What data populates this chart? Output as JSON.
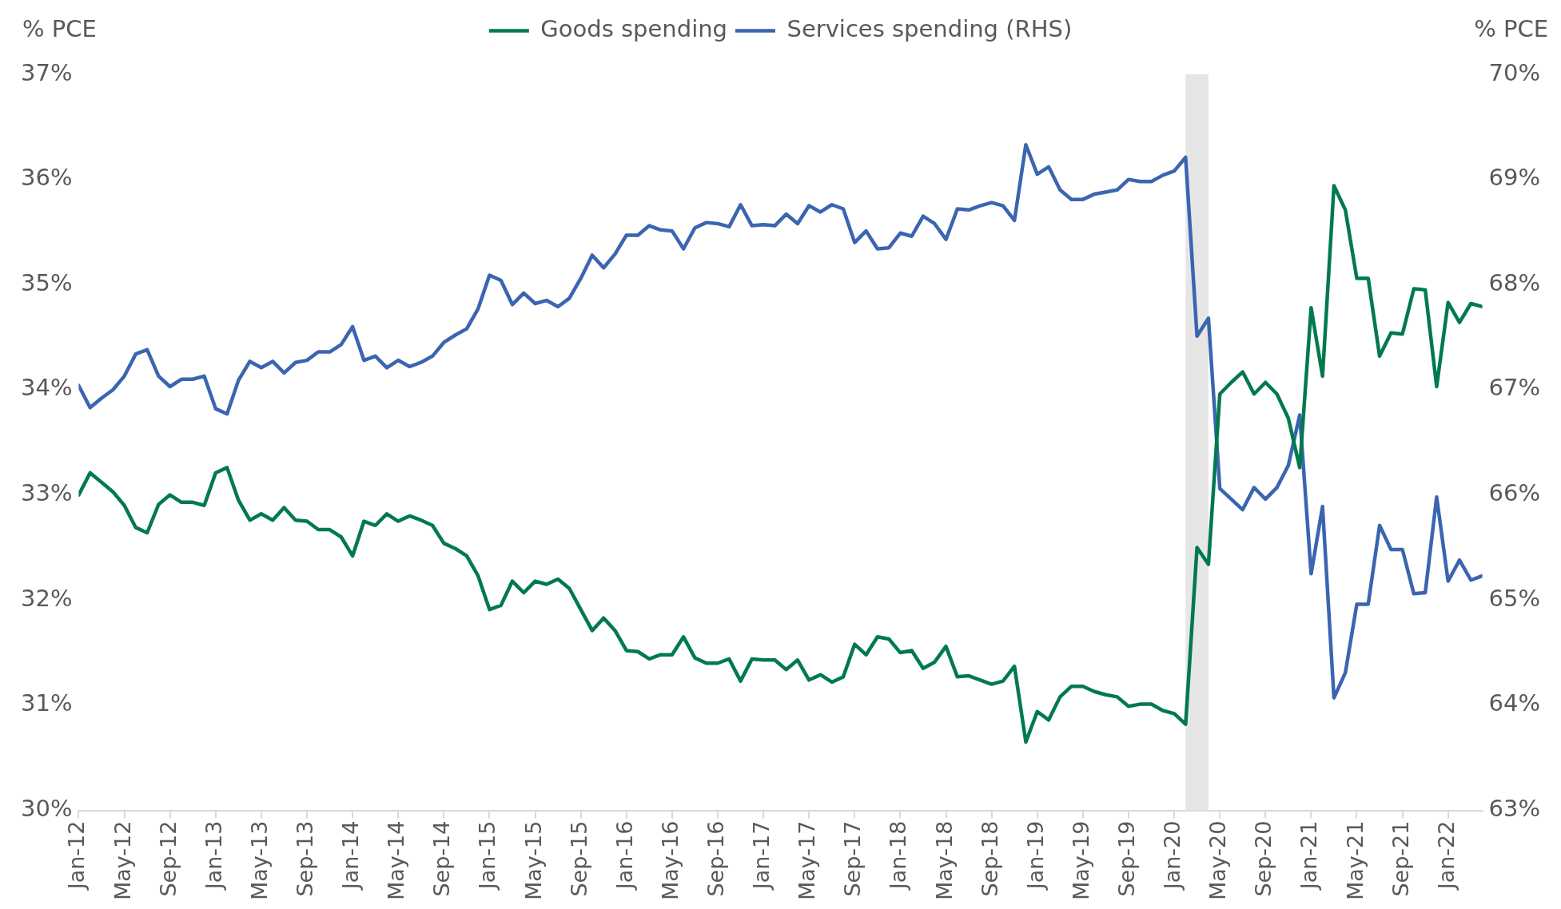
{
  "chart_data": {
    "type": "line",
    "ylabel": "% PCE",
    "y2label": "% PCE",
    "legend": "top",
    "grid": false,
    "marker": "none",
    "line_style": "solid",
    "x": [
      "2012-01",
      "2012-02",
      "2012-03",
      "2012-04",
      "2012-05",
      "2012-06",
      "2012-07",
      "2012-08",
      "2012-09",
      "2012-10",
      "2012-11",
      "2012-12",
      "2013-01",
      "2013-02",
      "2013-03",
      "2013-04",
      "2013-05",
      "2013-06",
      "2013-07",
      "2013-08",
      "2013-09",
      "2013-10",
      "2013-11",
      "2013-12",
      "2014-01",
      "2014-02",
      "2014-03",
      "2014-04",
      "2014-05",
      "2014-06",
      "2014-07",
      "2014-08",
      "2014-09",
      "2014-10",
      "2014-11",
      "2014-12",
      "2015-01",
      "2015-02",
      "2015-03",
      "2015-04",
      "2015-05",
      "2015-06",
      "2015-07",
      "2015-08",
      "2015-09",
      "2015-10",
      "2015-11",
      "2015-12",
      "2016-01",
      "2016-02",
      "2016-03",
      "2016-04",
      "2016-05",
      "2016-06",
      "2016-07",
      "2016-08",
      "2016-09",
      "2016-10",
      "2016-11",
      "2016-12",
      "2017-01",
      "2017-02",
      "2017-03",
      "2017-04",
      "2017-05",
      "2017-06",
      "2017-07",
      "2017-08",
      "2017-09",
      "2017-10",
      "2017-11",
      "2017-12",
      "2018-01",
      "2018-02",
      "2018-03",
      "2018-04",
      "2018-05",
      "2018-06",
      "2018-07",
      "2018-08",
      "2018-09",
      "2018-10",
      "2018-11",
      "2018-12",
      "2019-01",
      "2019-02",
      "2019-03",
      "2019-04",
      "2019-05",
      "2019-06",
      "2019-07",
      "2019-08",
      "2019-09",
      "2019-10",
      "2019-11",
      "2019-12",
      "2020-01",
      "2020-02",
      "2020-03",
      "2020-04",
      "2020-05",
      "2020-06",
      "2020-07",
      "2020-08",
      "2020-09",
      "2020-10",
      "2020-11",
      "2020-12",
      "2021-01",
      "2021-02",
      "2021-03",
      "2021-04",
      "2021-05",
      "2021-06",
      "2021-07",
      "2021-08",
      "2021-09",
      "2021-10",
      "2021-11",
      "2021-12",
      "2022-01",
      "2022-02",
      "2022-03",
      "2022-04"
    ],
    "xlim": [
      "2012-01",
      "2022-04"
    ],
    "xticks": [
      {
        "value": "2012-01",
        "label": "Jan-12"
      },
      {
        "value": "2012-05",
        "label": "May-12"
      },
      {
        "value": "2012-09",
        "label": "Sep-12"
      },
      {
        "value": "2013-01",
        "label": "Jan-13"
      },
      {
        "value": "2013-05",
        "label": "May-13"
      },
      {
        "value": "2013-09",
        "label": "Sep-13"
      },
      {
        "value": "2014-01",
        "label": "Jan-14"
      },
      {
        "value": "2014-05",
        "label": "May-14"
      },
      {
        "value": "2014-09",
        "label": "Sep-14"
      },
      {
        "value": "2015-01",
        "label": "Jan-15"
      },
      {
        "value": "2015-05",
        "label": "May-15"
      },
      {
        "value": "2015-09",
        "label": "Sep-15"
      },
      {
        "value": "2016-01",
        "label": "Jan-16"
      },
      {
        "value": "2016-05",
        "label": "May-16"
      },
      {
        "value": "2016-09",
        "label": "Sep-16"
      },
      {
        "value": "2017-01",
        "label": "Jan-17"
      },
      {
        "value": "2017-05",
        "label": "May-17"
      },
      {
        "value": "2017-09",
        "label": "Sep-17"
      },
      {
        "value": "2018-01",
        "label": "Jan-18"
      },
      {
        "value": "2018-05",
        "label": "May-18"
      },
      {
        "value": "2018-09",
        "label": "Sep-18"
      },
      {
        "value": "2019-01",
        "label": "Jan-19"
      },
      {
        "value": "2019-05",
        "label": "May-19"
      },
      {
        "value": "2019-09",
        "label": "Sep-19"
      },
      {
        "value": "2020-01",
        "label": "Jan-20"
      },
      {
        "value": "2020-05",
        "label": "May-20"
      },
      {
        "value": "2020-09",
        "label": "Sep-20"
      },
      {
        "value": "2021-01",
        "label": "Jan-21"
      },
      {
        "value": "2021-05",
        "label": "May-21"
      },
      {
        "value": "2021-09",
        "label": "Sep-21"
      },
      {
        "value": "2022-01",
        "label": "Jan-22"
      }
    ],
    "ylim": [
      30,
      37
    ],
    "yticks": [
      {
        "value": 30,
        "label": "30%"
      },
      {
        "value": 31,
        "label": "31%"
      },
      {
        "value": 32,
        "label": "32%"
      },
      {
        "value": 33,
        "label": "33%"
      },
      {
        "value": 34,
        "label": "34%"
      },
      {
        "value": 35,
        "label": "35%"
      },
      {
        "value": 36,
        "label": "36%"
      },
      {
        "value": 37,
        "label": "37%"
      }
    ],
    "y2lim": [
      63,
      70
    ],
    "y2ticks": [
      {
        "value": 63,
        "label": "63%"
      },
      {
        "value": 64,
        "label": "64%"
      },
      {
        "value": 65,
        "label": "65%"
      },
      {
        "value": 66,
        "label": "66%"
      },
      {
        "value": 67,
        "label": "67%"
      },
      {
        "value": 68,
        "label": "68%"
      },
      {
        "value": 69,
        "label": "69%"
      },
      {
        "value": 70,
        "label": "70%"
      }
    ],
    "bands": [
      {
        "axis": "x",
        "from": "2020-02",
        "to": "2020-04",
        "color": "#e6e6e6"
      }
    ],
    "series": [
      {
        "name": "Goods spending",
        "color": "#007a4d",
        "values": [
          33.0,
          33.21,
          33.12,
          33.03,
          32.9,
          32.69,
          32.64,
          32.91,
          33.0,
          32.93,
          32.93,
          32.9,
          33.21,
          33.26,
          32.95,
          32.76,
          32.82,
          32.76,
          32.88,
          32.76,
          32.75,
          32.67,
          32.67,
          32.6,
          32.42,
          32.75,
          32.71,
          32.82,
          32.75,
          32.8,
          32.76,
          32.71,
          32.54,
          32.49,
          32.42,
          32.23,
          31.91,
          31.95,
          32.18,
          32.07,
          32.18,
          32.15,
          32.2,
          32.11,
          31.91,
          31.71,
          31.83,
          31.71,
          31.52,
          31.51,
          31.44,
          31.48,
          31.48,
          31.65,
          31.45,
          31.4,
          31.4,
          31.44,
          31.23,
          31.44,
          31.43,
          31.43,
          31.34,
          31.43,
          31.24,
          31.29,
          31.22,
          31.27,
          31.58,
          31.48,
          31.65,
          31.63,
          31.5,
          31.52,
          31.35,
          31.41,
          31.56,
          31.27,
          31.28,
          31.24,
          31.2,
          31.23,
          31.37,
          30.65,
          30.94,
          30.86,
          31.08,
          31.18,
          31.18,
          31.13,
          31.1,
          31.08,
          30.99,
          31.01,
          31.01,
          30.95,
          30.92,
          30.82,
          32.5,
          32.34,
          33.96,
          34.07,
          34.17,
          33.96,
          34.07,
          33.96,
          33.73,
          33.26,
          34.78,
          34.13,
          35.94,
          35.71,
          35.06,
          35.06,
          34.32,
          34.54,
          34.53,
          34.96,
          34.95,
          34.03,
          34.83,
          34.64,
          34.82,
          34.79
        ]
      },
      {
        "name": "Services spending (RHS)",
        "color": "#3a65b0",
        "axis": "y2",
        "values": [
          67.04,
          66.83,
          66.92,
          67.0,
          67.13,
          67.34,
          67.38,
          67.13,
          67.03,
          67.1,
          67.1,
          67.13,
          66.82,
          66.77,
          67.09,
          67.27,
          67.21,
          67.27,
          67.16,
          67.26,
          67.28,
          67.36,
          67.36,
          67.43,
          67.6,
          67.28,
          67.32,
          67.21,
          67.28,
          67.22,
          67.26,
          67.32,
          67.45,
          67.52,
          67.58,
          67.77,
          68.09,
          68.04,
          67.81,
          67.92,
          67.82,
          67.85,
          67.79,
          67.87,
          68.06,
          68.28,
          68.16,
          68.29,
          68.47,
          68.47,
          68.56,
          68.52,
          68.51,
          68.34,
          68.54,
          68.59,
          68.58,
          68.55,
          68.76,
          68.56,
          68.57,
          68.56,
          68.67,
          68.58,
          68.75,
          68.69,
          68.76,
          68.72,
          68.4,
          68.51,
          68.34,
          68.35,
          68.49,
          68.46,
          68.65,
          68.58,
          68.43,
          68.72,
          68.71,
          68.75,
          68.78,
          68.75,
          68.61,
          69.33,
          69.05,
          69.12,
          68.9,
          68.81,
          68.81,
          68.86,
          68.88,
          68.9,
          69.0,
          68.98,
          68.98,
          69.04,
          69.08,
          69.21,
          67.51,
          67.68,
          66.06,
          65.96,
          65.86,
          66.07,
          65.96,
          66.07,
          66.28,
          66.76,
          65.25,
          65.89,
          64.07,
          64.31,
          64.96,
          64.96,
          65.71,
          65.48,
          65.48,
          65.06,
          65.07,
          65.98,
          65.18,
          65.38,
          65.19,
          65.23
        ]
      }
    ]
  }
}
